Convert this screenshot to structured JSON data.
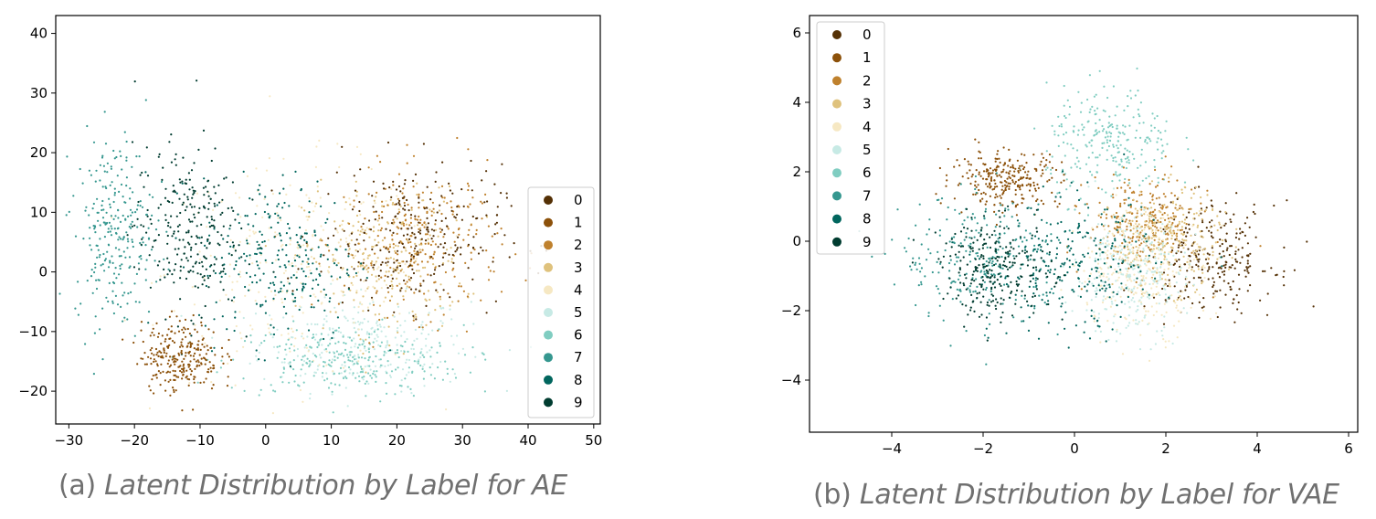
{
  "figure": {
    "panels": [
      {
        "caption_tag": "(a)",
        "caption_text": "Latent Distribution by Label for AE"
      },
      {
        "caption_tag": "(b)",
        "caption_text": "Latent Distribution by Label for VAE"
      }
    ]
  },
  "palette": [
    "#543005",
    "#8c510a",
    "#bf812d",
    "#dfc27d",
    "#f6e8c3",
    "#c7eae5",
    "#80cdc1",
    "#35978f",
    "#01665e",
    "#003c30"
  ],
  "chart_data": [
    {
      "type": "scatter",
      "title": "",
      "xlabel": "",
      "ylabel": "",
      "xlim": [
        -32,
        51
      ],
      "ylim": [
        -25.5,
        43
      ],
      "xticks": [
        "−30",
        "−20",
        "−10",
        "0",
        "10",
        "20",
        "30",
        "40",
        "50"
      ],
      "xtick_values": [
        -30,
        -20,
        -10,
        0,
        10,
        20,
        30,
        40,
        50
      ],
      "yticks": [
        "−20",
        "−10",
        "0",
        "10",
        "20",
        "30",
        "40"
      ],
      "ytick_values": [
        -20,
        -10,
        0,
        10,
        20,
        30,
        40
      ],
      "grid": false,
      "legend_position": "lower right",
      "legend": [
        "0",
        "1",
        "2",
        "3",
        "4",
        "5",
        "6",
        "7",
        "8",
        "9"
      ],
      "series": [
        {
          "name": "0",
          "center": [
            22,
            6
          ],
          "spread": [
            7,
            6
          ]
        },
        {
          "name": "1",
          "center": [
            -13,
            -14
          ],
          "spread": [
            3,
            3
          ]
        },
        {
          "name": "2",
          "center": [
            24,
            5
          ],
          "spread": [
            6,
            6
          ]
        },
        {
          "name": "3",
          "center": [
            18,
            2
          ],
          "spread": [
            6,
            6
          ]
        },
        {
          "name": "4",
          "center": [
            5,
            0
          ],
          "spread": [
            10,
            9
          ]
        },
        {
          "name": "5",
          "center": [
            15,
            -12
          ],
          "spread": [
            8,
            4
          ]
        },
        {
          "name": "6",
          "center": [
            12,
            -15
          ],
          "spread": [
            9,
            3
          ]
        },
        {
          "name": "7",
          "center": [
            -23,
            7
          ],
          "spread": [
            3,
            8
          ]
        },
        {
          "name": "8",
          "center": [
            2,
            2
          ],
          "spread": [
            6,
            7
          ]
        },
        {
          "name": "9",
          "center": [
            -12,
            7
          ],
          "spread": [
            4,
            7
          ]
        }
      ]
    },
    {
      "type": "scatter",
      "title": "",
      "xlabel": "",
      "ylabel": "",
      "xlim": [
        -5.8,
        6.2
      ],
      "ylim": [
        -5.5,
        6.5
      ],
      "xticks": [
        "−4",
        "−2",
        "0",
        "2",
        "4",
        "6"
      ],
      "xtick_values": [
        -4,
        -2,
        0,
        2,
        4,
        6
      ],
      "yticks": [
        "−4",
        "−2",
        "0",
        "2",
        "4",
        "6"
      ],
      "ytick_values": [
        -4,
        -2,
        0,
        2,
        4,
        6
      ],
      "grid": false,
      "legend_position": "upper left",
      "legend": [
        "0",
        "1",
        "2",
        "3",
        "4",
        "5",
        "6",
        "7",
        "8",
        "9"
      ],
      "series": [
        {
          "name": "0",
          "center": [
            3,
            -0.5
          ],
          "spread": [
            0.7,
            0.8
          ]
        },
        {
          "name": "1",
          "center": [
            -1.5,
            1.8
          ],
          "spread": [
            0.6,
            0.4
          ]
        },
        {
          "name": "2",
          "center": [
            1.5,
            0.5
          ],
          "spread": [
            0.6,
            0.7
          ]
        },
        {
          "name": "3",
          "center": [
            2,
            0
          ],
          "spread": [
            0.6,
            0.7
          ]
        },
        {
          "name": "4",
          "center": [
            1.5,
            -0.8
          ],
          "spread": [
            0.7,
            0.9
          ]
        },
        {
          "name": "5",
          "center": [
            1.2,
            -1
          ],
          "spread": [
            0.6,
            0.9
          ]
        },
        {
          "name": "6",
          "center": [
            0.8,
            2.8
          ],
          "spread": [
            0.7,
            0.8
          ]
        },
        {
          "name": "7",
          "center": [
            -2,
            -0.5
          ],
          "spread": [
            0.9,
            0.9
          ]
        },
        {
          "name": "8",
          "center": [
            0,
            -0.8
          ],
          "spread": [
            0.9,
            1.0
          ]
        },
        {
          "name": "9",
          "center": [
            -1.7,
            -0.8
          ],
          "spread": [
            0.6,
            0.7
          ]
        }
      ]
    }
  ]
}
